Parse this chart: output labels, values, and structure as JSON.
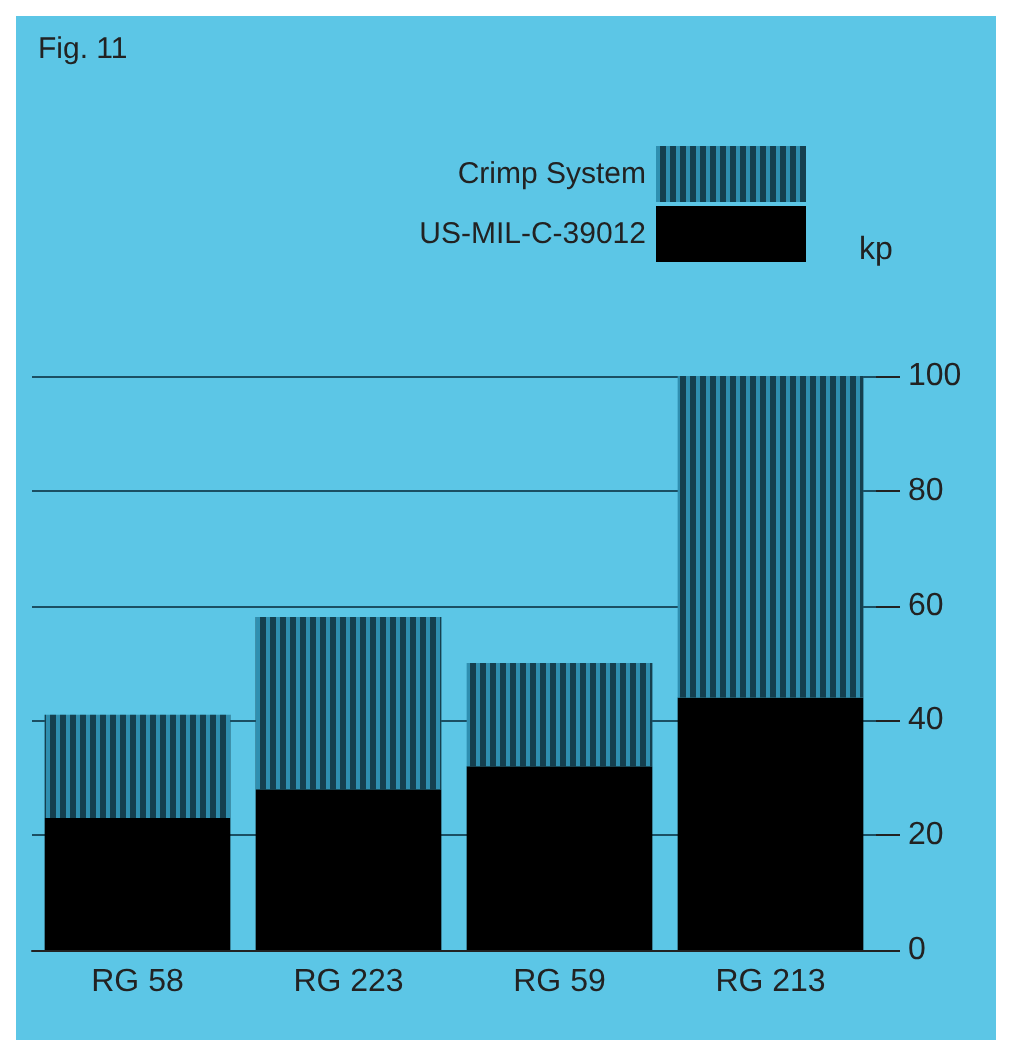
{
  "chart_data": {
    "type": "bar",
    "title": "Fig. 11",
    "ylabel": "kp",
    "categories": [
      "RG 58",
      "RG 223",
      "RG 59",
      "RG 213"
    ],
    "stacked": true,
    "series": [
      {
        "name": "US-MIL-C-39012",
        "color": "#000000",
        "values": [
          23,
          28,
          32,
          44
        ]
      },
      {
        "name": "Crimp System",
        "color": "#2f8fb0",
        "values": [
          18,
          30,
          18,
          56
        ]
      }
    ],
    "ylim": [
      0,
      100
    ],
    "yticks": [
      0,
      20,
      40,
      60,
      80,
      100
    ],
    "grid": "y",
    "legend": "top right"
  }
}
